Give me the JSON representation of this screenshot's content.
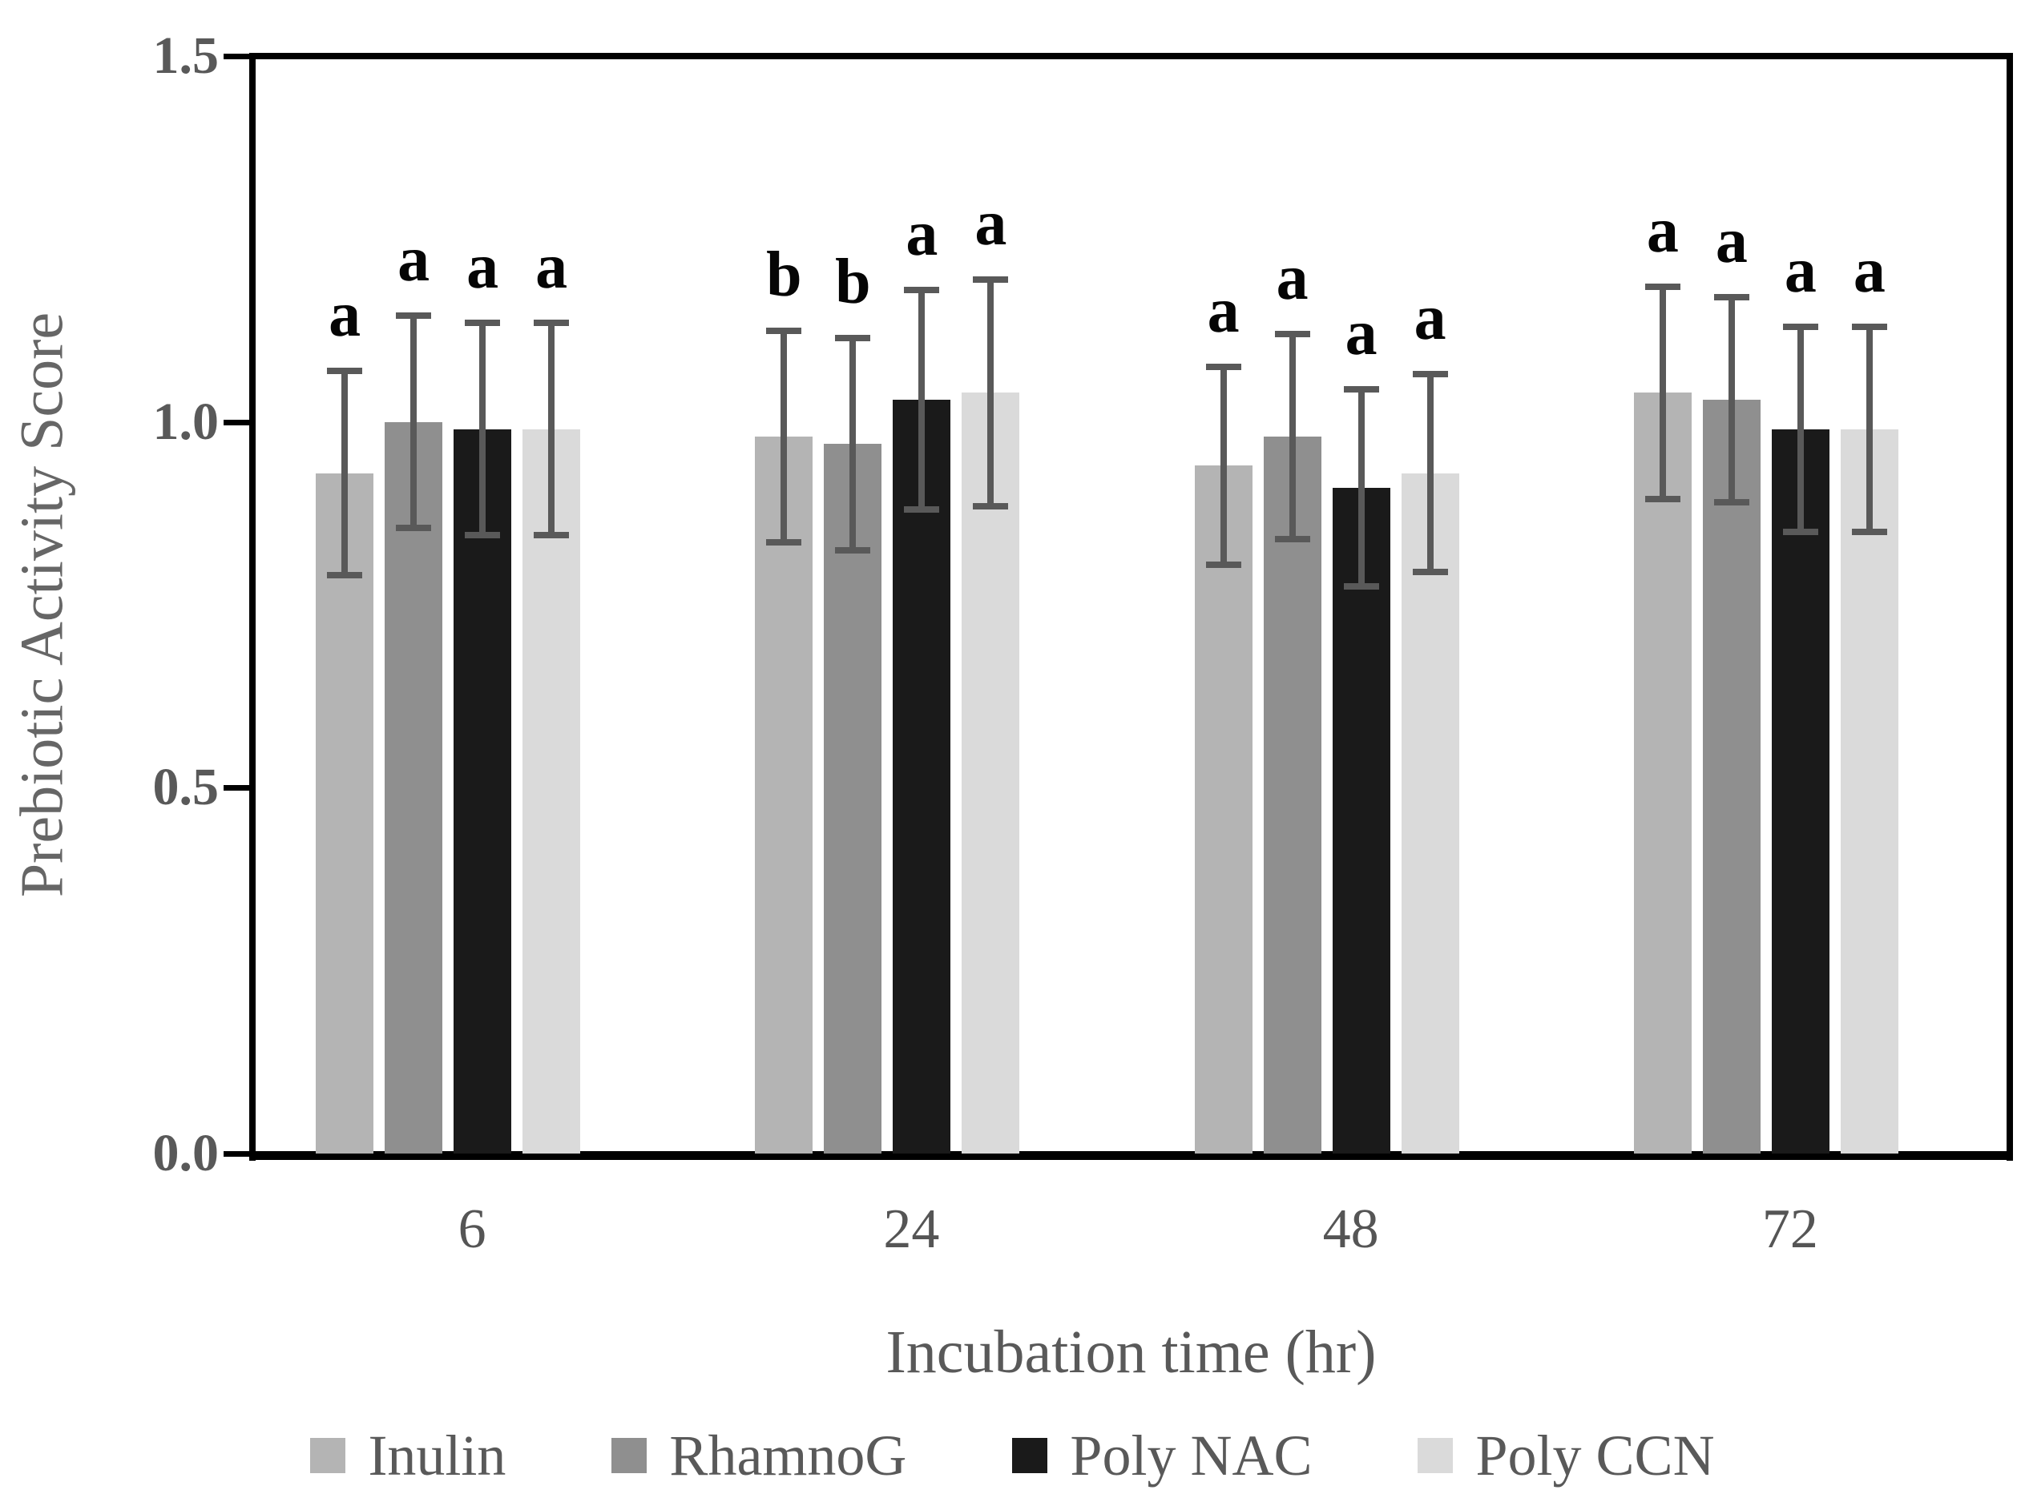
{
  "chart_data": {
    "type": "bar",
    "title": "",
    "xlabel": "Incubation time (hr)",
    "ylabel": "Prebiotic Activity Score",
    "categories": [
      "6",
      "24",
      "48",
      "72"
    ],
    "y_ticks": [
      "0.0",
      "0.5",
      "1.0",
      "1.5"
    ],
    "y_tick_values": [
      0,
      0.5,
      1.0,
      1.5
    ],
    "ylim": [
      0,
      1.5
    ],
    "grid": false,
    "legend_position": "bottom",
    "error_bar_color": "#595959",
    "axis_color": "#000000",
    "series": [
      {
        "name": "Inulin",
        "color": "#b4b4b4",
        "values": [
          0.93,
          0.98,
          0.94,
          1.04
        ],
        "errors": [
          0.14,
          0.145,
          0.135,
          0.145
        ],
        "letters": [
          "a",
          "b",
          "a",
          "a"
        ]
      },
      {
        "name": "RhamnoG",
        "color": "#8f8f8f",
        "values": [
          1.0,
          0.97,
          0.98,
          1.03
        ],
        "errors": [
          0.145,
          0.145,
          0.14,
          0.14
        ],
        "letters": [
          "a",
          "b",
          "a",
          "a"
        ]
      },
      {
        "name": "Poly NAC",
        "color": "#1a1a1a",
        "values": [
          0.99,
          1.03,
          0.91,
          0.99
        ],
        "errors": [
          0.145,
          0.15,
          0.135,
          0.14
        ],
        "letters": [
          "a",
          "a",
          "a",
          "a"
        ]
      },
      {
        "name": "Poly CCN",
        "color": "#dadada",
        "values": [
          0.99,
          1.04,
          0.93,
          0.99
        ],
        "errors": [
          0.145,
          0.155,
          0.135,
          0.14
        ],
        "letters": [
          "a",
          "a",
          "a",
          "a"
        ]
      }
    ]
  }
}
